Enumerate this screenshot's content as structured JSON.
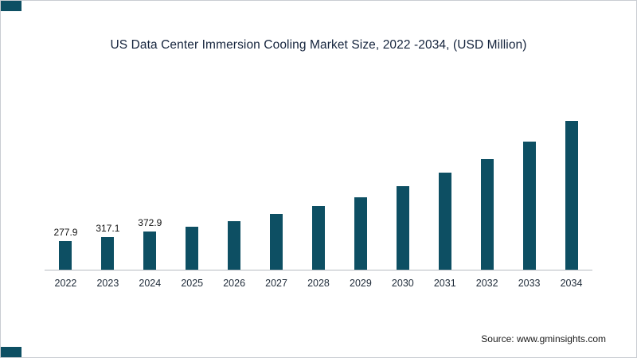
{
  "title": "US Data Center Immersion Cooling Market Size, 2022 -2034, (USD Million)",
  "source": "Source: www.gminsights.com",
  "colors": {
    "bar": "#0d4f63",
    "title": "#14233c",
    "axis": "#b7bcc1",
    "accent": "#0d4f63"
  },
  "chart_data": {
    "type": "bar",
    "title": "US Data Center Immersion Cooling Market Size, 2022 -2034, (USD Million)",
    "xlabel": "",
    "ylabel": "USD Million",
    "categories": [
      "2022",
      "2023",
      "2024",
      "2025",
      "2026",
      "2027",
      "2028",
      "2029",
      "2030",
      "2031",
      "2032",
      "2033",
      "2034"
    ],
    "values": [
      277.9,
      317.1,
      372.9,
      413,
      470,
      541,
      619,
      703,
      808,
      938,
      1071,
      1240,
      1440
    ],
    "data_labels": [
      "277.9",
      "317.1",
      "372.9",
      "",
      "",
      "",
      "",
      "",
      "",
      "",
      "",
      "",
      ""
    ],
    "labeled_note": "only 2022-2024 carry printed value labels; later values estimated from bar heights",
    "ylim": [
      0,
      1500
    ],
    "grid": false,
    "legend": false
  }
}
